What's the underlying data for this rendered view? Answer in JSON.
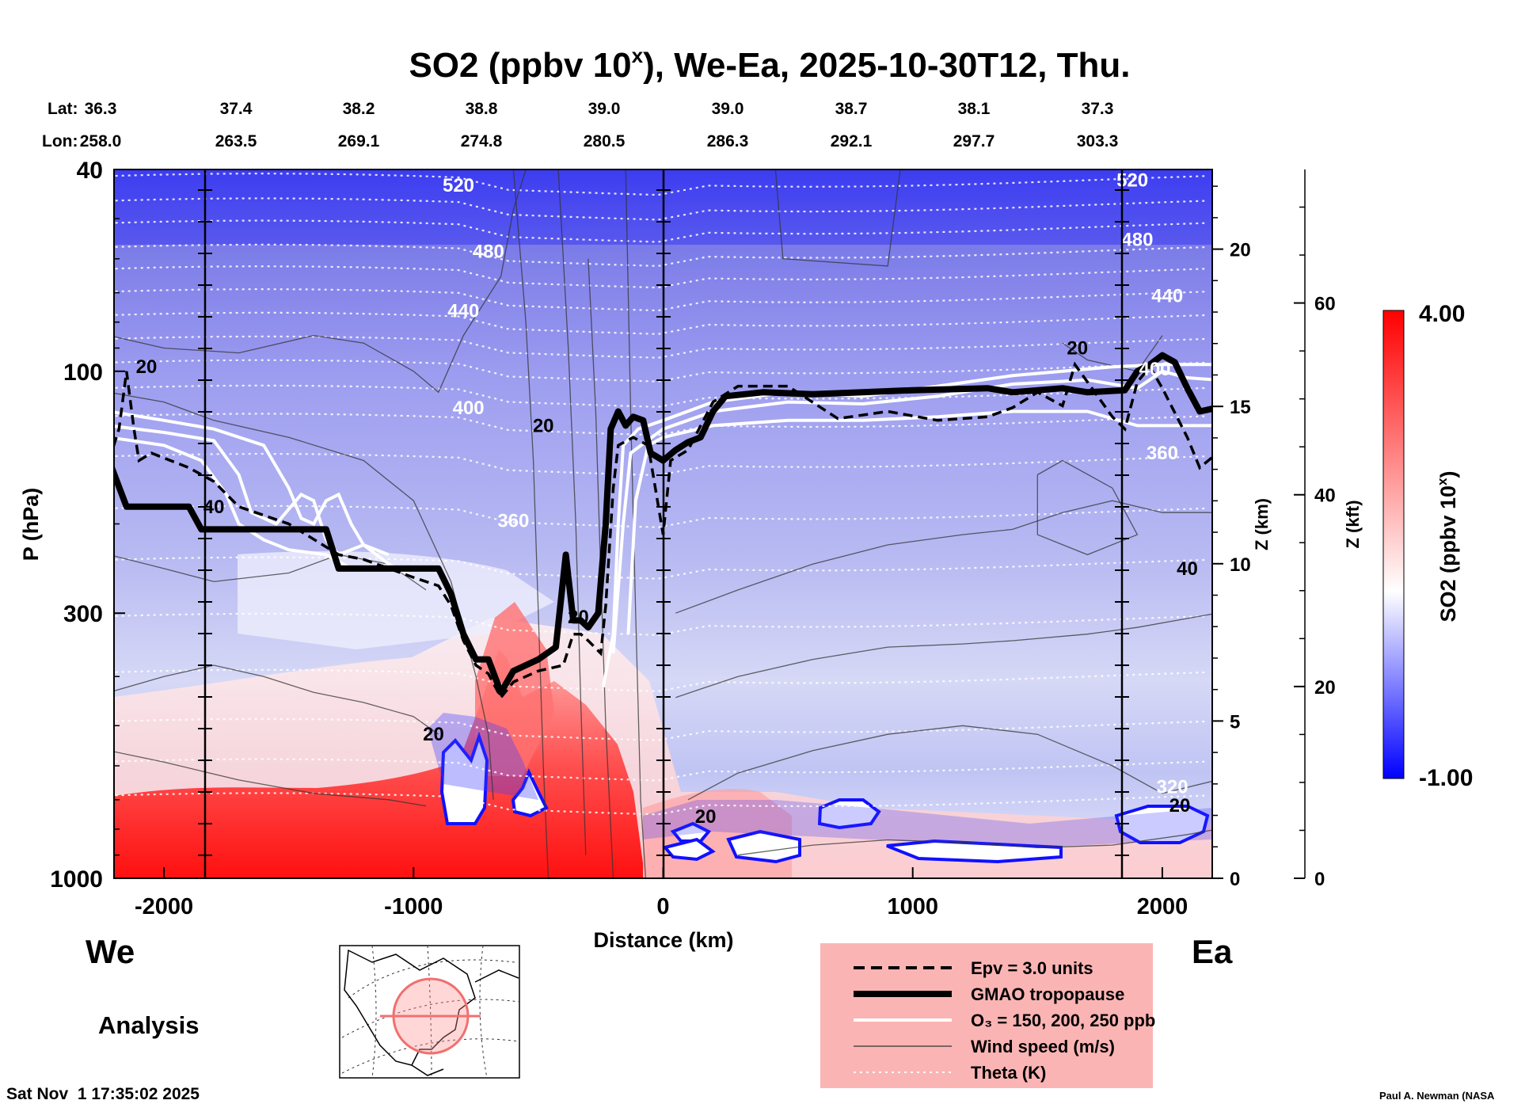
{
  "chart_data": {
    "type": "heatmap",
    "title_main": "SO2 (ppbv 10",
    "title_sup": "x",
    "title_rest": "), We-Ea, 2025-10-30T12, Thu.",
    "lat_label": "Lat:",
    "lon_label": "Lon:",
    "coords": [
      {
        "lat": "36.3",
        "lon": "258.0"
      },
      {
        "lat": "37.4",
        "lon": "263.5"
      },
      {
        "lat": "38.2",
        "lon": "269.1"
      },
      {
        "lat": "38.8",
        "lon": "274.8"
      },
      {
        "lat": "39.0",
        "lon": "280.5"
      },
      {
        "lat": "39.0",
        "lon": "286.3"
      },
      {
        "lat": "38.7",
        "lon": "292.1"
      },
      {
        "lat": "38.1",
        "lon": "297.7"
      },
      {
        "lat": "37.3",
        "lon": "303.3"
      }
    ],
    "xlabel": "Distance (km)",
    "ylabel": "P (hPa)",
    "xlim": [
      -2200,
      2200
    ],
    "ylim_hpa": [
      1000,
      40
    ],
    "x_ticks": [
      {
        "v": -2000,
        "label": "-2000"
      },
      {
        "v": -1000,
        "label": "-1000"
      },
      {
        "v": 0,
        "label": "0"
      },
      {
        "v": 1000,
        "label": "1000"
      },
      {
        "v": 2000,
        "label": "2000"
      }
    ],
    "p_ticks": [
      {
        "v": 40,
        "label": "40"
      },
      {
        "v": 100,
        "label": "100"
      },
      {
        "v": 300,
        "label": "300"
      },
      {
        "v": 1000,
        "label": "1000"
      }
    ],
    "z_km_label": "Z (km)",
    "z_km_ticks": [
      {
        "v": 0,
        "label": "0"
      },
      {
        "v": 5,
        "label": "5"
      },
      {
        "v": 10,
        "label": "10"
      },
      {
        "v": 15,
        "label": "15"
      },
      {
        "v": 20,
        "label": "20"
      }
    ],
    "z_kft_label": "Z (kft)",
    "z_kft_ticks": [
      {
        "v": 0,
        "label": "0"
      },
      {
        "v": 20,
        "label": "20"
      },
      {
        "v": 40,
        "label": "40"
      },
      {
        "v": 60,
        "label": "60"
      }
    ],
    "colorbar": {
      "label_main": "SO2 (ppbv 10",
      "label_sup": "x",
      "label_rest": ")",
      "min": -1.0,
      "max": 4.0,
      "min_label": "-1.00",
      "max_label": "4.00",
      "colors": [
        "#0000ff",
        "#ffffff",
        "#ff0000"
      ]
    },
    "theta_labels": [
      {
        "x": -820,
        "p": 43,
        "label": "520"
      },
      {
        "x": 1880,
        "p": 42,
        "label": "520"
      },
      {
        "x": -700,
        "p": 58,
        "label": "480"
      },
      {
        "x": 1900,
        "p": 55,
        "label": "480"
      },
      {
        "x": -800,
        "p": 76,
        "label": "440"
      },
      {
        "x": 2020,
        "p": 71,
        "label": "440"
      },
      {
        "x": -780,
        "p": 118,
        "label": "400"
      },
      {
        "x": 1970,
        "p": 99,
        "label": "400"
      },
      {
        "x": -600,
        "p": 197,
        "label": "360"
      },
      {
        "x": 2000,
        "p": 145,
        "label": "360"
      },
      {
        "x": 2040,
        "p": 660,
        "label": "320"
      }
    ],
    "wind_labels": [
      {
        "x": -2070,
        "p": 98,
        "label": "20"
      },
      {
        "x": 1660,
        "p": 90,
        "label": "20"
      },
      {
        "x": -480,
        "p": 128,
        "label": "20"
      },
      {
        "x": -1800,
        "p": 185,
        "label": "40"
      },
      {
        "x": 2100,
        "p": 245,
        "label": "40"
      },
      {
        "x": -920,
        "p": 520,
        "label": "20"
      },
      {
        "x": 170,
        "p": 755,
        "label": "20"
      },
      {
        "x": 2070,
        "p": 718,
        "label": "20"
      },
      {
        "x": -340,
        "p": 305,
        "label": "20"
      }
    ],
    "tropopause_gmao": [
      [
        -2220,
        150
      ],
      [
        -2150,
        185
      ],
      [
        -2100,
        185
      ],
      [
        -1900,
        185
      ],
      [
        -1850,
        205
      ],
      [
        -1500,
        205
      ],
      [
        -1350,
        205
      ],
      [
        -1300,
        245
      ],
      [
        -1200,
        245
      ],
      [
        -1000,
        245
      ],
      [
        -900,
        245
      ],
      [
        -850,
        275
      ],
      [
        -800,
        330
      ],
      [
        -750,
        370
      ],
      [
        -700,
        370
      ],
      [
        -650,
        430
      ],
      [
        -600,
        390
      ],
      [
        -500,
        370
      ],
      [
        -430,
        350
      ],
      [
        -390,
        230
      ],
      [
        -360,
        310
      ],
      [
        -330,
        310
      ],
      [
        -300,
        320
      ],
      [
        -260,
        300
      ],
      [
        -230,
        200
      ],
      [
        -210,
        130
      ],
      [
        -180,
        120
      ],
      [
        -150,
        128
      ],
      [
        -120,
        123
      ],
      [
        -80,
        125
      ],
      [
        -50,
        145
      ],
      [
        0,
        150
      ],
      [
        50,
        143
      ],
      [
        100,
        138
      ],
      [
        150,
        135
      ],
      [
        200,
        120
      ],
      [
        250,
        112
      ],
      [
        400,
        110
      ],
      [
        600,
        111
      ],
      [
        800,
        110
      ],
      [
        1000,
        109
      ],
      [
        1300,
        108
      ],
      [
        1400,
        110
      ],
      [
        1600,
        108
      ],
      [
        1700,
        110
      ],
      [
        1850,
        109
      ],
      [
        1900,
        100
      ],
      [
        1950,
        97
      ],
      [
        2000,
        93
      ],
      [
        2050,
        96
      ],
      [
        2100,
        108
      ],
      [
        2150,
        120
      ],
      [
        2220,
        118
      ]
    ],
    "epv_3units": [
      [
        -2220,
        150
      ],
      [
        -2180,
        130
      ],
      [
        -2150,
        100
      ],
      [
        -2120,
        130
      ],
      [
        -2100,
        150
      ],
      [
        -2050,
        145
      ],
      [
        -1900,
        155
      ],
      [
        -1800,
        165
      ],
      [
        -1700,
        185
      ],
      [
        -1500,
        200
      ],
      [
        -1300,
        230
      ],
      [
        -1200,
        235
      ],
      [
        -1000,
        255
      ],
      [
        -900,
        265
      ],
      [
        -850,
        290
      ],
      [
        -800,
        340
      ],
      [
        -750,
        380
      ],
      [
        -700,
        395
      ],
      [
        -650,
        440
      ],
      [
        -600,
        410
      ],
      [
        -500,
        390
      ],
      [
        -400,
        380
      ],
      [
        -360,
        330
      ],
      [
        -330,
        330
      ],
      [
        -300,
        340
      ],
      [
        -250,
        360
      ],
      [
        -230,
        290
      ],
      [
        -200,
        170
      ],
      [
        -180,
        140
      ],
      [
        -120,
        135
      ],
      [
        -60,
        140
      ],
      [
        0,
        210
      ],
      [
        30,
        150
      ],
      [
        100,
        143
      ],
      [
        200,
        115
      ],
      [
        300,
        107
      ],
      [
        500,
        107
      ],
      [
        700,
        124
      ],
      [
        900,
        120
      ],
      [
        1100,
        125
      ],
      [
        1300,
        123
      ],
      [
        1400,
        118
      ],
      [
        1500,
        110
      ],
      [
        1600,
        117
      ],
      [
        1650,
        97
      ],
      [
        1700,
        105
      ],
      [
        1800,
        123
      ],
      [
        1850,
        130
      ],
      [
        1900,
        105
      ],
      [
        1950,
        98
      ],
      [
        2000,
        108
      ],
      [
        2100,
        135
      ],
      [
        2150,
        155
      ],
      [
        2220,
        145
      ]
    ],
    "o3_contours": [
      [
        [
          -2220,
          120
        ],
        [
          -2000,
          125
        ],
        [
          -1800,
          130
        ],
        [
          -1600,
          140
        ],
        [
          -1500,
          170
        ],
        [
          -1450,
          195
        ],
        [
          -1400,
          200
        ],
        [
          -1350,
          180
        ],
        [
          -1300,
          175
        ],
        [
          -1250,
          200
        ],
        [
          -1200,
          220
        ],
        [
          -1100,
          240
        ],
        [
          -1000,
          255
        ]
      ],
      [
        [
          -2220,
          128
        ],
        [
          -2000,
          132
        ],
        [
          -1800,
          137
        ],
        [
          -1700,
          160
        ],
        [
          -1650,
          190
        ],
        [
          -1550,
          200
        ],
        [
          -1450,
          175
        ],
        [
          -1400,
          180
        ],
        [
          -1350,
          215
        ],
        [
          -1300,
          230
        ],
        [
          -1200,
          220
        ],
        [
          -1100,
          230
        ]
      ],
      [
        [
          -2220,
          135
        ],
        [
          -2000,
          140
        ],
        [
          -1850,
          150
        ],
        [
          -1750,
          175
        ],
        [
          -1700,
          200
        ],
        [
          -1600,
          215
        ],
        [
          -1500,
          225
        ],
        [
          -1350,
          230
        ],
        [
          -1250,
          245
        ]
      ],
      [
        [
          -240,
          420
        ],
        [
          -200,
          330
        ],
        [
          -180,
          200
        ],
        [
          -160,
          140
        ],
        [
          -100,
          130
        ],
        [
          0,
          125
        ],
        [
          200,
          115
        ],
        [
          500,
          110
        ],
        [
          800,
          112
        ],
        [
          1100,
          107
        ],
        [
          1400,
          102
        ],
        [
          1600,
          100
        ],
        [
          1800,
          98
        ],
        [
          2000,
          97
        ],
        [
          2220,
          97
        ]
      ],
      [
        [
          -200,
          360
        ],
        [
          -160,
          200
        ],
        [
          -130,
          145
        ],
        [
          0,
          130
        ],
        [
          200,
          120
        ],
        [
          500,
          115
        ],
        [
          800,
          116
        ],
        [
          1100,
          112
        ],
        [
          1400,
          106
        ],
        [
          1700,
          104
        ],
        [
          1900,
          108
        ],
        [
          2000,
          100
        ],
        [
          2100,
          103
        ],
        [
          2220,
          104
        ]
      ],
      [
        [
          -140,
          330
        ],
        [
          -110,
          180
        ],
        [
          -60,
          140
        ],
        [
          0,
          135
        ],
        [
          200,
          128
        ],
        [
          500,
          125
        ],
        [
          800,
          125
        ],
        [
          1100,
          123
        ],
        [
          1400,
          120
        ],
        [
          1700,
          120
        ],
        [
          1900,
          128
        ],
        [
          2220,
          128
        ]
      ]
    ],
    "legend": [
      {
        "style": "dashed",
        "label": "Epv = 3.0 units"
      },
      {
        "style": "thick",
        "label": "GMAO tropopause"
      },
      {
        "style": "white",
        "label": "O₃ = 150, 200, 250 ppb"
      },
      {
        "style": "thin",
        "label": "Wind speed (m/s)"
      },
      {
        "style": "dotted",
        "label": "Theta (K)"
      }
    ],
    "west_label": "We",
    "east_label": "Ea"
  },
  "footer": {
    "analysis": "Analysis",
    "date_stamp": "Sat Nov  1 17:35:02 2025",
    "credit": "Paul A. Newman (NASA"
  },
  "map_inset": {
    "name": "North America orthographic inset with section path"
  }
}
